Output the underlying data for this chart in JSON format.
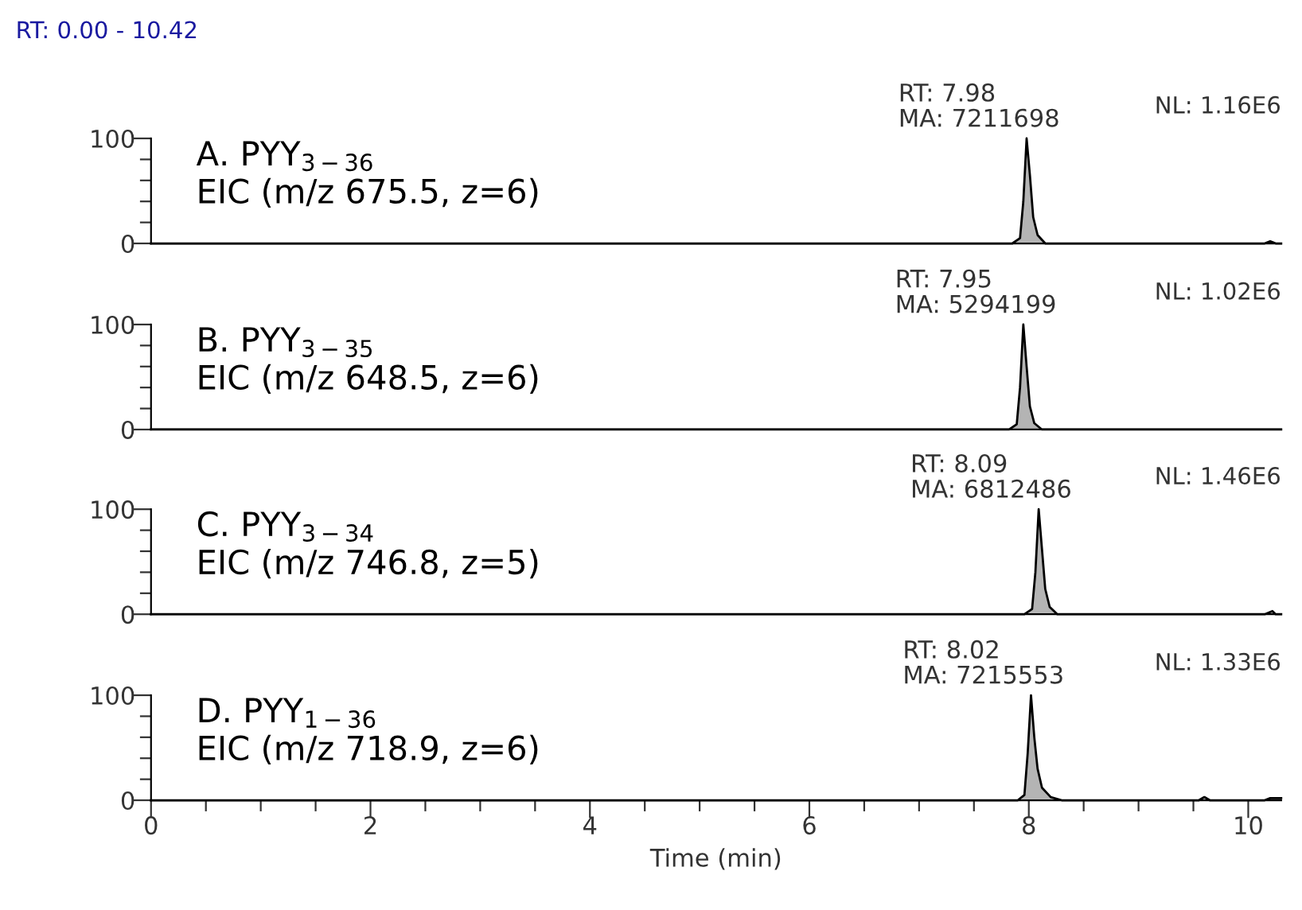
{
  "chart_data": [
    {
      "type": "area",
      "title": "A. PYY$_{3−36}$",
      "subtitle": "EIC (m/z 675.5, z=6)",
      "annotations": [
        "RT: 0.00 - 10.42",
        "NL: 1.16E6",
        {
          "text": "RT: 7.98\nMA: 7211698",
          "x": 7.98,
          "y": 100
        }
      ],
      "series": [
        {
          "color": "#b4b4b4",
          "x": [
            0,
            7.85,
            7.92,
            7.95,
            7.98,
            8.01,
            8.04,
            8.08,
            8.15,
            10.15,
            10.2,
            10.25,
            10.3
          ],
          "values": [
            0,
            0,
            5,
            40,
            100,
            65,
            25,
            8,
            0,
            0,
            2,
            0,
            0
          ]
        }
      ],
      "xlim": [
        0,
        10.3
      ],
      "ylim": [
        0,
        100
      ],
      "yticks": [
        0,
        {
          "value": 20,
          "label": null
        },
        {
          "value": 40,
          "label": null
        },
        {
          "value": 60,
          "label": null
        },
        {
          "value": 80,
          "label": null
        },
        100
      ],
      "tick_labels": "y",
      "grid": false,
      "legend": false
    },
    {
      "type": "area",
      "title": "B. PYY$_{3−35}$",
      "subtitle": "EIC (m/z 648.5, z=6)",
      "annotations": [
        "NL: 1.02E6",
        {
          "text": "RT: 7.95\nMA: 5294199",
          "x": 7.95,
          "y": 100
        }
      ],
      "series": [
        {
          "color": "#b4b4b4",
          "x": [
            0,
            7.82,
            7.89,
            7.92,
            7.95,
            7.98,
            8.01,
            8.05,
            8.12,
            10.3
          ],
          "values": [
            0,
            0,
            5,
            40,
            100,
            60,
            22,
            6,
            0,
            0
          ]
        }
      ],
      "xlim": [
        0,
        10.3
      ],
      "ylim": [
        0,
        100
      ],
      "yticks": [
        0,
        {
          "value": 20,
          "label": null
        },
        {
          "value": 40,
          "label": null
        },
        {
          "value": 60,
          "label": null
        },
        {
          "value": 80,
          "label": null
        },
        100
      ],
      "tick_labels": "y",
      "grid": false,
      "legend": false
    },
    {
      "type": "area",
      "title": "C. PYY$_{3−34}$",
      "subtitle": "EIC (m/z 746.8, z=5)",
      "annotations": [
        "NL: 1.46E6",
        {
          "text": "RT: 8.09\nMA: 6812486",
          "x": 8.09,
          "y": 100
        }
      ],
      "series": [
        {
          "color": "#b4b4b4",
          "x": [
            0,
            7.96,
            8.03,
            8.06,
            8.09,
            8.12,
            8.15,
            8.19,
            8.26,
            10.15,
            10.22,
            10.25,
            10.3
          ],
          "values": [
            0,
            0,
            5,
            40,
            100,
            62,
            24,
            7,
            0,
            0,
            3,
            0,
            0
          ]
        }
      ],
      "xlim": [
        0,
        10.3
      ],
      "ylim": [
        0,
        100
      ],
      "yticks": [
        0,
        {
          "value": 20,
          "label": null
        },
        {
          "value": 40,
          "label": null
        },
        {
          "value": 60,
          "label": null
        },
        {
          "value": 80,
          "label": null
        },
        100
      ],
      "tick_labels": "y",
      "grid": false,
      "legend": false
    },
    {
      "type": "area",
      "title": "D. PYY$_{1−36}$",
      "subtitle": "EIC (m/z 718.9, z=6)",
      "xlabel": "Time (min)",
      "annotations": [
        "NL: 1.33E6",
        {
          "text": "RT: 8.02\nMA: 7215553",
          "x": 8.02,
          "y": 100
        }
      ],
      "series": [
        {
          "color": "#b4b4b4",
          "x": [
            0,
            7.9,
            7.96,
            7.99,
            8.02,
            8.05,
            8.08,
            8.12,
            8.2,
            8.3,
            9.55,
            9.6,
            9.65,
            10.15,
            10.2,
            10.3
          ],
          "values": [
            0,
            0,
            5,
            45,
            100,
            60,
            30,
            12,
            3,
            0,
            0,
            3,
            0,
            0,
            2,
            2
          ]
        }
      ],
      "xlim": [
        0,
        10.3
      ],
      "xticks": [
        0,
        {
          "value": 0.5,
          "label": null
        },
        {
          "value": 1,
          "label": null
        },
        {
          "value": 1.5,
          "label": null
        },
        2,
        {
          "value": 2.5,
          "label": null
        },
        {
          "value": 3,
          "label": null
        },
        {
          "value": 3.5,
          "label": null
        },
        4,
        {
          "value": 4.5,
          "label": null
        },
        {
          "value": 5,
          "label": null
        },
        {
          "value": 5.5,
          "label": null
        },
        6,
        {
          "value": 6.5,
          "label": null
        },
        {
          "value": 7,
          "label": null
        },
        {
          "value": 7.5,
          "label": null
        },
        8,
        {
          "value": 8.5,
          "label": null
        },
        {
          "value": 9,
          "label": null
        },
        {
          "value": 9.5,
          "label": null
        },
        10
      ],
      "ylim": [
        0,
        100
      ],
      "yticks": [
        0,
        {
          "value": 20,
          "label": null
        },
        {
          "value": 40,
          "label": null
        },
        {
          "value": 60,
          "label": null
        },
        {
          "value": 80,
          "label": null
        },
        100
      ],
      "grid": false,
      "legend": false
    }
  ]
}
